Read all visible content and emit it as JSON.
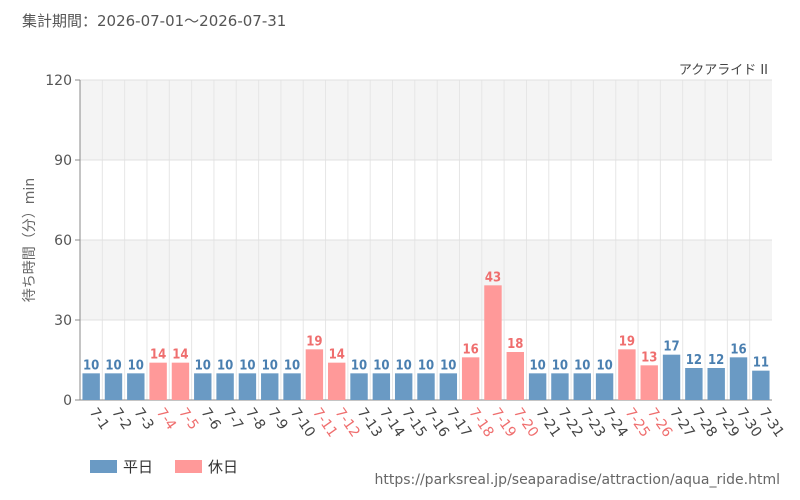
{
  "header": {
    "period": "集計期間：2026-07-01～2026-07-31"
  },
  "chart_data": {
    "type": "bar",
    "title": "アクアライド II",
    "ylabel": "待ち時間（分）min",
    "xlabel": "",
    "ylim": [
      0,
      120
    ],
    "yticks": [
      0,
      30,
      60,
      90,
      120
    ],
    "grid": true,
    "colors": {
      "weekday": "#6a9ac4",
      "holiday": "#ff9999",
      "weekday_label": "#4a7fb0",
      "holiday_label": "#ef6e6e"
    },
    "categories": [
      "7-1",
      "7-2",
      "7-3",
      "7-4",
      "7-5",
      "7-6",
      "7-7",
      "7-8",
      "7-9",
      "7-10",
      "7-11",
      "7-12",
      "7-13",
      "7-14",
      "7-15",
      "7-16",
      "7-17",
      "7-18",
      "7-19",
      "7-20",
      "7-21",
      "7-22",
      "7-23",
      "7-24",
      "7-25",
      "7-26",
      "7-27",
      "7-28",
      "7-29",
      "7-30",
      "7-31"
    ],
    "values": [
      10,
      10,
      10,
      14,
      14,
      10,
      10,
      10,
      10,
      10,
      19,
      14,
      10,
      10,
      10,
      10,
      10,
      16,
      43,
      18,
      10,
      10,
      10,
      10,
      19,
      13,
      17,
      12,
      12,
      16,
      11
    ],
    "day_type": [
      "weekday",
      "weekday",
      "weekday",
      "holiday",
      "holiday",
      "weekday",
      "weekday",
      "weekday",
      "weekday",
      "weekday",
      "holiday",
      "holiday",
      "weekday",
      "weekday",
      "weekday",
      "weekday",
      "weekday",
      "holiday",
      "holiday",
      "holiday",
      "weekday",
      "weekday",
      "weekday",
      "weekday",
      "holiday",
      "holiday",
      "weekday",
      "weekday",
      "weekday",
      "weekday",
      "weekday"
    ],
    "legend": {
      "position": "bottom-left",
      "items": [
        {
          "key": "weekday",
          "label": "平日"
        },
        {
          "key": "holiday",
          "label": "休日"
        }
      ]
    }
  },
  "footer": {
    "source": "https://parksreal.jp/seaparadise/attraction/aqua_ride.html"
  }
}
